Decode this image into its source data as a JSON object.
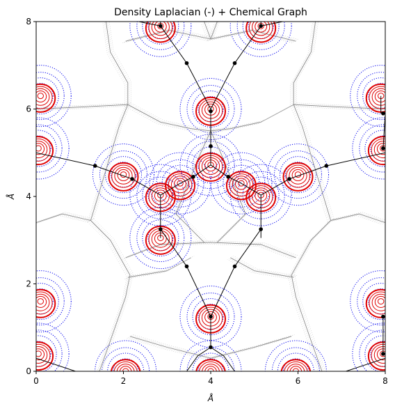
{
  "chart_data": {
    "type": "contour",
    "title": "Density Laplacian (-) + Chemical Graph",
    "xlabel": "Å",
    "ylabel": "Å",
    "xlim": [
      0,
      8
    ],
    "ylim": [
      0,
      8
    ],
    "x_ticks": [
      "0",
      "2",
      "4",
      "6",
      "8"
    ],
    "y_ticks": [
      "0",
      "2",
      "4",
      "6",
      "8"
    ],
    "grid": false,
    "colors": {
      "positive_contours": "#e00000",
      "negative_contours": "#0000ee",
      "gradient_paths": "#888888",
      "bond_paths": "#000000",
      "critical_points": "#000000"
    },
    "atoms": [
      {
        "x": 4.0,
        "y": 6.0
      },
      {
        "x": 4.0,
        "y": 1.25
      },
      {
        "x": 4.0,
        "y": 4.72
      },
      {
        "x": 2.0,
        "y": 4.5
      },
      {
        "x": 6.0,
        "y": 4.5
      },
      {
        "x": 2.85,
        "y": 4.03
      },
      {
        "x": 5.15,
        "y": 4.03
      },
      {
        "x": 2.85,
        "y": 3.05
      },
      {
        "x": 2.85,
        "y": 7.9
      },
      {
        "x": 5.15,
        "y": 7.9
      },
      {
        "x": 3.3,
        "y": 4.3
      },
      {
        "x": 4.7,
        "y": 4.3
      },
      {
        "x": 0.05,
        "y": 5.1
      },
      {
        "x": 7.95,
        "y": 5.1
      },
      {
        "x": 0.05,
        "y": 0.4
      },
      {
        "x": 7.95,
        "y": 0.4
      },
      {
        "x": 0.1,
        "y": 6.3
      },
      {
        "x": 7.9,
        "y": 6.3
      },
      {
        "x": 0.1,
        "y": 1.6
      },
      {
        "x": 7.9,
        "y": 1.6
      },
      {
        "x": 2.05,
        "y": 0.0
      },
      {
        "x": 5.95,
        "y": 0.0
      },
      {
        "x": 4.0,
        "y": 0.0
      }
    ],
    "bond_paths": [
      [
        [
          2.85,
          8.0
        ],
        [
          2.85,
          7.9
        ],
        [
          3.45,
          7.05
        ],
        [
          4.0,
          6.0
        ]
      ],
      [
        [
          5.15,
          8.0
        ],
        [
          5.15,
          7.9
        ],
        [
          4.55,
          7.05
        ],
        [
          4.0,
          6.0
        ]
      ],
      [
        [
          2.85,
          7.9
        ],
        [
          2.35,
          8.0
        ]
      ],
      [
        [
          5.15,
          7.9
        ],
        [
          5.65,
          8.0
        ]
      ],
      [
        [
          4.0,
          6.0
        ],
        [
          4.0,
          4.72
        ]
      ],
      [
        [
          4.0,
          4.72
        ],
        [
          3.6,
          4.45
        ],
        [
          3.3,
          4.3
        ],
        [
          2.85,
          4.03
        ]
      ],
      [
        [
          4.0,
          4.72
        ],
        [
          4.4,
          4.45
        ],
        [
          4.7,
          4.3
        ],
        [
          5.15,
          4.03
        ]
      ],
      [
        [
          2.85,
          4.03
        ],
        [
          2.2,
          4.4
        ],
        [
          1.35,
          4.7
        ],
        [
          0.0,
          5.0
        ]
      ],
      [
        [
          5.15,
          4.03
        ],
        [
          5.8,
          4.4
        ],
        [
          6.65,
          4.7
        ],
        [
          8.0,
          5.0
        ]
      ],
      [
        [
          2.85,
          4.03
        ],
        [
          2.85,
          3.25
        ],
        [
          2.85,
          3.05
        ]
      ],
      [
        [
          5.15,
          4.03
        ],
        [
          5.15,
          3.25
        ],
        [
          5.15,
          3.05
        ]
      ],
      [
        [
          2.85,
          3.25
        ],
        [
          3.45,
          2.4
        ],
        [
          4.0,
          1.25
        ]
      ],
      [
        [
          5.15,
          3.25
        ],
        [
          4.55,
          2.4
        ],
        [
          4.0,
          1.25
        ]
      ],
      [
        [
          4.0,
          1.25
        ],
        [
          4.0,
          0.55
        ]
      ],
      [
        [
          3.45,
          0.0
        ],
        [
          3.7,
          0.35
        ],
        [
          4.0,
          0.55
        ]
      ],
      [
        [
          4.55,
          0.0
        ],
        [
          4.3,
          0.35
        ],
        [
          4.0,
          0.55
        ]
      ],
      [
        [
          0.0,
          0.3
        ],
        [
          0.9,
          0.0
        ]
      ],
      [
        [
          8.0,
          0.3
        ],
        [
          7.1,
          0.0
        ]
      ],
      [
        [
          7.95,
          5.1
        ],
        [
          8.0,
          5.9
        ]
      ],
      [
        [
          7.9,
          6.3
        ],
        [
          7.9,
          5.9
        ]
      ],
      [
        [
          7.95,
          0.4
        ],
        [
          7.95,
          1.25
        ]
      ]
    ],
    "bond_critical_points": [
      {
        "x": 2.85,
        "y": 7.9
      },
      {
        "x": 5.15,
        "y": 7.9
      },
      {
        "x": 3.45,
        "y": 7.05
      },
      {
        "x": 4.55,
        "y": 7.05
      },
      {
        "x": 4.0,
        "y": 5.95
      },
      {
        "x": 4.0,
        "y": 5.15
      },
      {
        "x": 3.6,
        "y": 4.45
      },
      {
        "x": 4.4,
        "y": 4.45
      },
      {
        "x": 2.2,
        "y": 4.4
      },
      {
        "x": 5.8,
        "y": 4.4
      },
      {
        "x": 1.35,
        "y": 4.7
      },
      {
        "x": 6.65,
        "y": 4.7
      },
      {
        "x": 2.85,
        "y": 3.25
      },
      {
        "x": 5.15,
        "y": 3.25
      },
      {
        "x": 3.45,
        "y": 2.4
      },
      {
        "x": 4.55,
        "y": 2.4
      },
      {
        "x": 4.0,
        "y": 1.25
      },
      {
        "x": 4.0,
        "y": 0.55
      },
      {
        "x": 7.95,
        "y": 5.9
      },
      {
        "x": 7.95,
        "y": 1.25
      },
      {
        "x": 7.95,
        "y": 5.1
      },
      {
        "x": 7.95,
        "y": 0.4
      }
    ],
    "gradient_separatrices": [
      [
        [
          1.6,
          8.0
        ],
        [
          1.7,
          7.3
        ],
        [
          2.1,
          6.6
        ],
        [
          2.1,
          6.1
        ],
        [
          1.9,
          5.6
        ],
        [
          1.25,
          3.45
        ]
      ],
      [
        [
          6.4,
          8.0
        ],
        [
          6.3,
          7.3
        ],
        [
          5.9,
          6.6
        ],
        [
          5.9,
          6.1
        ],
        [
          6.1,
          5.6
        ],
        [
          6.75,
          3.45
        ]
      ],
      [
        [
          2.1,
          6.1
        ],
        [
          2.85,
          5.7
        ],
        [
          3.55,
          5.55
        ],
        [
          4.0,
          5.5
        ],
        [
          4.45,
          5.55
        ],
        [
          5.15,
          5.7
        ],
        [
          5.9,
          6.1
        ]
      ],
      [
        [
          2.1,
          6.1
        ],
        [
          1.1,
          6.05
        ],
        [
          0.0,
          6.0
        ]
      ],
      [
        [
          5.9,
          6.1
        ],
        [
          6.9,
          6.05
        ],
        [
          8.0,
          6.0
        ]
      ],
      [
        [
          2.05,
          7.55
        ],
        [
          3.05,
          7.8
        ],
        [
          4.0,
          7.6
        ],
        [
          4.95,
          7.8
        ],
        [
          5.95,
          7.55
        ]
      ],
      [
        [
          4.0,
          7.6
        ],
        [
          3.85,
          8.0
        ]
      ],
      [
        [
          4.0,
          7.6
        ],
        [
          4.15,
          8.0
        ]
      ],
      [
        [
          1.25,
          3.45
        ],
        [
          1.7,
          3.0
        ],
        [
          2.15,
          2.2
        ],
        [
          2.05,
          1.7
        ],
        [
          1.7,
          0.7
        ],
        [
          1.45,
          0.0
        ]
      ],
      [
        [
          6.75,
          3.45
        ],
        [
          6.3,
          3.0
        ],
        [
          5.85,
          2.2
        ],
        [
          5.95,
          1.7
        ],
        [
          6.3,
          0.7
        ],
        [
          6.55,
          0.0
        ]
      ],
      [
        [
          2.05,
          2.6
        ],
        [
          2.85,
          2.9
        ],
        [
          4.0,
          2.95
        ],
        [
          5.15,
          2.9
        ],
        [
          5.95,
          2.6
        ]
      ],
      [
        [
          4.0,
          5.5
        ],
        [
          3.75,
          4.95
        ],
        [
          3.2,
          3.6
        ],
        [
          3.85,
          2.95
        ]
      ],
      [
        [
          4.0,
          5.5
        ],
        [
          4.25,
          4.95
        ],
        [
          4.8,
          3.6
        ],
        [
          4.15,
          2.95
        ]
      ],
      [
        [
          2.1,
          2.15
        ],
        [
          3.0,
          2.3
        ],
        [
          3.55,
          2.6
        ]
      ],
      [
        [
          5.9,
          2.15
        ],
        [
          5.0,
          2.3
        ],
        [
          4.45,
          2.6
        ]
      ],
      [
        [
          2.15,
          0.8
        ],
        [
          3.0,
          0.55
        ],
        [
          4.0,
          0.3
        ],
        [
          5.0,
          0.55
        ],
        [
          5.85,
          0.8
        ]
      ],
      [
        [
          6.75,
          3.45
        ],
        [
          7.4,
          3.6
        ],
        [
          8.0,
          3.4
        ]
      ],
      [
        [
          1.25,
          3.45
        ],
        [
          0.6,
          3.6
        ],
        [
          0.0,
          3.4
        ]
      ]
    ]
  }
}
